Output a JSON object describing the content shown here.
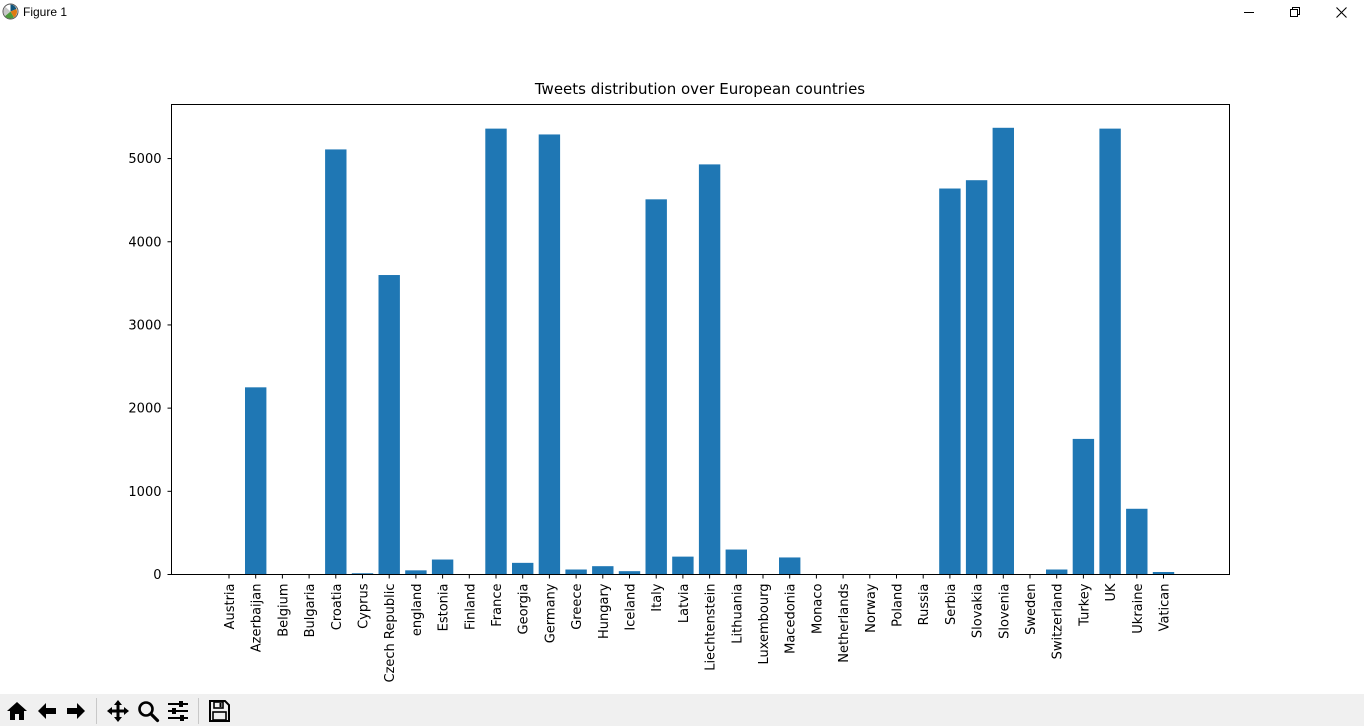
{
  "window": {
    "title": "Figure 1",
    "icon": "matplotlib-icon",
    "controls": [
      "minimize-icon",
      "maximize-icon",
      "close-icon"
    ]
  },
  "toolbar": {
    "tools": [
      {
        "name": "home-button",
        "icon": "home-icon"
      },
      {
        "name": "back-button",
        "icon": "arrow-left-icon"
      },
      {
        "name": "forward-button",
        "icon": "arrow-right-icon"
      },
      {
        "name": "pan-button",
        "icon": "move-icon"
      },
      {
        "name": "zoom-button",
        "icon": "magnifier-icon"
      },
      {
        "name": "configure-subplots-button",
        "icon": "sliders-icon"
      },
      {
        "name": "save-button",
        "icon": "floppy-disk-icon"
      }
    ]
  },
  "chart_data": {
    "type": "bar",
    "title": "Tweets distribution over European countries",
    "xlabel": "",
    "ylabel": "",
    "bar_color": "#1f77b4",
    "ylim": [
      0,
      5650
    ],
    "yticks": [
      0,
      1000,
      2000,
      3000,
      4000,
      5000
    ],
    "x_tick_rotation": "vertical",
    "grid": false,
    "categories": [
      "Austria",
      "Azerbaijan",
      "Belgium",
      "Bulgaria",
      "Croatia",
      "Cyprus",
      "Czech Republic",
      "england",
      "Estonia",
      "Finland",
      "France",
      "Georgia",
      "Germany",
      "Greece",
      "Hungary",
      "Iceland",
      "Italy",
      "Latvia",
      "Liechtenstein",
      "Lithuania",
      "Luxembourg",
      "Macedonia",
      "Monaco",
      "Netherlands",
      "Norway",
      "Poland",
      "Russia",
      "Serbia",
      "Slovakia",
      "Slovenia",
      "Sweden",
      "Switzerland",
      "Turkey",
      "UK",
      "Ukraine",
      "Vatican"
    ],
    "values": [
      0,
      2250,
      0,
      0,
      5110,
      15,
      3600,
      50,
      180,
      0,
      5360,
      140,
      5290,
      60,
      100,
      40,
      4510,
      215,
      4930,
      300,
      0,
      205,
      0,
      0,
      0,
      0,
      0,
      4640,
      4740,
      5370,
      0,
      60,
      1630,
      5360,
      790,
      30
    ]
  }
}
